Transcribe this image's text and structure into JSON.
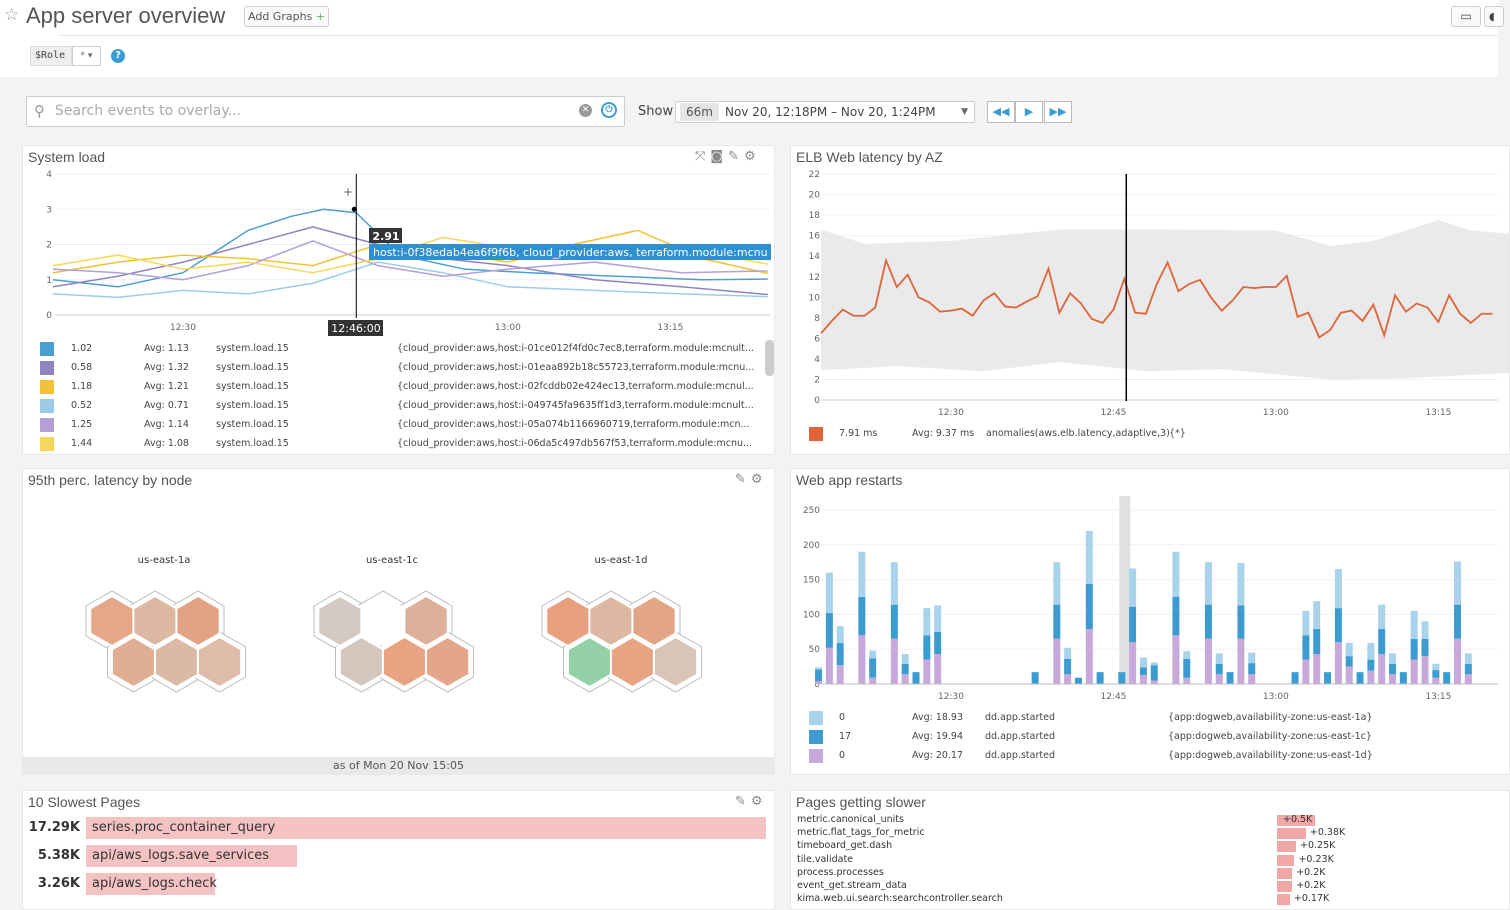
{
  "header": {
    "title": "App server overview",
    "add_graphs": "Add Graphs",
    "add_plus": "+",
    "template_var": "$Role",
    "template_value": "*",
    "help": "?"
  },
  "toolbar": {
    "search_placeholder": "Search events to overlay...",
    "show_label": "Show",
    "duration": "66m",
    "time_range": "Nov 20, 12:18PM – Nov 20, 1:24PM"
  },
  "icons": {
    "star": "star-icon",
    "monitor": "monitor-icon",
    "search": "search-icon",
    "clear": "clear-icon",
    "power": "power-icon",
    "rewind": "rewind-icon",
    "play": "play-icon",
    "fast_forward": "fast-forward-icon",
    "expand": "expand-icon",
    "camera": "camera-icon",
    "pencil": "pencil-icon",
    "gear": "gear-icon"
  },
  "system_load": {
    "title": "System load",
    "chart_data": {
      "type": "line",
      "ylim": [
        0,
        4
      ],
      "yticks": [
        "0",
        "1",
        "2",
        "3",
        "4"
      ],
      "xticks": [
        "12:30",
        "13:00",
        "13:15"
      ],
      "cursor": {
        "time": "12:46:00",
        "value": "2.91",
        "tooltip": "host:i-0f38edab4ea6f9f6b, cloud_provider:aws, terraform.module:mcnu"
      },
      "series": [
        {
          "color": "#4a9fd0",
          "points": [
            [
              "12:18",
              1.0
            ],
            [
              "12:24",
              0.8
            ],
            [
              "12:30",
              1.2
            ],
            [
              "12:36",
              2.4
            ],
            [
              "12:40",
              2.8
            ],
            [
              "12:43",
              3.0
            ],
            [
              "12:46",
              2.9
            ],
            [
              "12:50",
              1.7
            ],
            [
              "12:56",
              1.3
            ],
            [
              "13:02",
              1.2
            ],
            [
              "13:10",
              1.1
            ],
            [
              "13:18",
              1.0
            ],
            [
              "13:24",
              1.02
            ]
          ]
        },
        {
          "color": "#8e84c0",
          "points": [
            [
              "12:18",
              0.8
            ],
            [
              "12:24",
              1.1
            ],
            [
              "12:30",
              1.5
            ],
            [
              "12:36",
              2.0
            ],
            [
              "12:42",
              2.5
            ],
            [
              "12:48",
              2.0
            ],
            [
              "12:54",
              1.6
            ],
            [
              "13:00",
              1.4
            ],
            [
              "13:08",
              1.0
            ],
            [
              "13:16",
              0.8
            ],
            [
              "13:24",
              0.58
            ]
          ]
        },
        {
          "color": "#f0c23a",
          "points": [
            [
              "12:18",
              1.2
            ],
            [
              "12:24",
              1.5
            ],
            [
              "12:30",
              1.7
            ],
            [
              "12:36",
              1.6
            ],
            [
              "12:42",
              1.4
            ],
            [
              "12:48",
              2.0
            ],
            [
              "12:54",
              1.8
            ],
            [
              "13:00",
              1.5
            ],
            [
              "13:06",
              2.0
            ],
            [
              "13:12",
              2.4
            ],
            [
              "13:18",
              1.6
            ],
            [
              "13:24",
              1.18
            ]
          ]
        },
        {
          "color": "#9ccbe8",
          "points": [
            [
              "12:18",
              0.6
            ],
            [
              "12:24",
              0.5
            ],
            [
              "12:30",
              0.7
            ],
            [
              "12:36",
              0.6
            ],
            [
              "12:42",
              0.9
            ],
            [
              "12:48",
              1.5
            ],
            [
              "12:54",
              1.2
            ],
            [
              "13:00",
              0.8
            ],
            [
              "13:08",
              0.7
            ],
            [
              "13:16",
              0.6
            ],
            [
              "13:24",
              0.52
            ]
          ]
        },
        {
          "color": "#b49fd6",
          "points": [
            [
              "12:18",
              1.3
            ],
            [
              "12:24",
              1.2
            ],
            [
              "12:30",
              1.0
            ],
            [
              "12:36",
              1.4
            ],
            [
              "12:42",
              2.1
            ],
            [
              "12:48",
              1.4
            ],
            [
              "12:54",
              1.1
            ],
            [
              "13:00",
              1.3
            ],
            [
              "13:08",
              1.5
            ],
            [
              "13:16",
              1.2
            ],
            [
              "13:24",
              1.25
            ]
          ]
        },
        {
          "color": "#f5d75e",
          "points": [
            [
              "12:18",
              1.4
            ],
            [
              "12:24",
              1.7
            ],
            [
              "12:30",
              1.3
            ],
            [
              "12:36",
              1.5
            ],
            [
              "12:42",
              1.2
            ],
            [
              "12:48",
              1.6
            ],
            [
              "12:54",
              2.2
            ],
            [
              "13:00",
              1.9
            ],
            [
              "13:06",
              1.6
            ],
            [
              "13:12",
              2.0
            ],
            [
              "13:18",
              1.8
            ],
            [
              "13:24",
              1.44
            ]
          ]
        }
      ]
    },
    "legend": [
      {
        "color": "#4a9fd0",
        "value": "1.02",
        "avg": "Avg: 1.13",
        "metric": "system.load.15",
        "scope": "{cloud_provider:aws,host:i-01ce012f4fd0c7ec8,terraform.module:mcnult..."
      },
      {
        "color": "#8e84c0",
        "value": "0.58",
        "avg": "Avg: 1.32",
        "metric": "system.load.15",
        "scope": "{cloud_provider:aws,host:i-01eaa892b18c55723,terraform.module:mcnu..."
      },
      {
        "color": "#f0c23a",
        "value": "1.18",
        "avg": "Avg: 1.21",
        "metric": "system.load.15",
        "scope": "{cloud_provider:aws,host:i-02fcddb02e424ec13,terraform.module:mcnul..."
      },
      {
        "color": "#9ccbe8",
        "value": "0.52",
        "avg": "Avg: 0.71",
        "metric": "system.load.15",
        "scope": "{cloud_provider:aws,host:i-049745fa9635ff1d3,terraform.module:mcnult..."
      },
      {
        "color": "#b49fd6",
        "value": "1.25",
        "avg": "Avg: 1.14",
        "metric": "system.load.15",
        "scope": "{cloud_provider:aws,host:i-05a074b1166960719,terraform.module:mcn..."
      },
      {
        "color": "#f5d75e",
        "value": "1.44",
        "avg": "Avg: 1.08",
        "metric": "system.load.15",
        "scope": "{cloud_provider:aws,host:i-06da5c497db567f53,terraform.module:mcnu..."
      }
    ]
  },
  "elb": {
    "title": "ELB Web latency by AZ",
    "chart_data": {
      "type": "line",
      "ylim": [
        0,
        22
      ],
      "yticks": [
        "0",
        "2",
        "4",
        "6",
        "8",
        "10",
        "12",
        "14",
        "16",
        "18",
        "20",
        "22"
      ],
      "xticks": [
        "12:30",
        "12:45",
        "13:00",
        "13:15"
      ],
      "color": "#e0643a",
      "cursor_time": "12:46",
      "points": [
        [
          "12:18",
          6.5
        ],
        [
          "12:19",
          7.7
        ],
        [
          "12:20",
          8.8
        ],
        [
          "12:21",
          8.2
        ],
        [
          "12:22",
          8.2
        ],
        [
          "12:23",
          9.0
        ],
        [
          "12:24",
          13.6
        ],
        [
          "12:25",
          11.0
        ],
        [
          "12:26",
          12.2
        ],
        [
          "12:27",
          10.0
        ],
        [
          "12:28",
          9.5
        ],
        [
          "12:29",
          8.6
        ],
        [
          "12:30",
          8.7
        ],
        [
          "12:31",
          8.9
        ],
        [
          "12:32",
          8.2
        ],
        [
          "12:33",
          9.7
        ],
        [
          "12:34",
          10.4
        ],
        [
          "12:35",
          9.1
        ],
        [
          "12:36",
          9.0
        ],
        [
          "12:37",
          9.6
        ],
        [
          "12:38",
          10.1
        ],
        [
          "12:39",
          12.8
        ],
        [
          "12:40",
          8.5
        ],
        [
          "12:41",
          10.4
        ],
        [
          "12:42",
          9.4
        ],
        [
          "12:43",
          7.9
        ],
        [
          "12:44",
          7.5
        ],
        [
          "12:45",
          8.8
        ],
        [
          "12:46",
          11.8
        ],
        [
          "12:47",
          8.5
        ],
        [
          "12:48",
          8.4
        ],
        [
          "12:49",
          11.3
        ],
        [
          "12:50",
          13.4
        ],
        [
          "12:51",
          10.6
        ],
        [
          "12:52",
          11.3
        ],
        [
          "12:53",
          11.7
        ],
        [
          "12:54",
          10.0
        ],
        [
          "12:55",
          8.7
        ],
        [
          "12:56",
          9.7
        ],
        [
          "12:57",
          11.0
        ],
        [
          "12:58",
          10.9
        ],
        [
          "12:59",
          11.0
        ],
        [
          "13:00",
          11.0
        ],
        [
          "13:01",
          12.1
        ],
        [
          "13:02",
          8.1
        ],
        [
          "13:03",
          8.5
        ],
        [
          "13:04",
          6.1
        ],
        [
          "13:05",
          6.8
        ],
        [
          "13:06",
          8.5
        ],
        [
          "13:07",
          8.7
        ],
        [
          "13:08",
          7.7
        ],
        [
          "13:09",
          9.3
        ],
        [
          "13:10",
          6.3
        ],
        [
          "13:11",
          10.2
        ],
        [
          "13:12",
          8.6
        ],
        [
          "13:13",
          9.4
        ],
        [
          "13:14",
          9.0
        ],
        [
          "13:15",
          7.6
        ],
        [
          "13:16",
          10.2
        ],
        [
          "13:17",
          8.4
        ],
        [
          "13:18",
          7.5
        ],
        [
          "13:19",
          8.4
        ],
        [
          "13:20",
          8.4
        ]
      ],
      "band_upper": [
        [
          "12:18",
          16.6
        ],
        [
          "12:22",
          15.2
        ],
        [
          "12:30",
          15.5
        ],
        [
          "12:40",
          16.6
        ],
        [
          "12:50",
          16.6
        ],
        [
          "13:00",
          16.5
        ],
        [
          "13:05",
          15.0
        ],
        [
          "13:09",
          15.5
        ],
        [
          "13:15",
          17.5
        ],
        [
          "13:18",
          16.5
        ],
        [
          "13:24",
          16.0
        ]
      ],
      "band_lower": [
        [
          "12:18",
          2.9
        ],
        [
          "12:25",
          3.3
        ],
        [
          "12:33",
          2.8
        ],
        [
          "12:40",
          3.7
        ],
        [
          "12:48",
          2.8
        ],
        [
          "12:55",
          3.0
        ],
        [
          "13:05",
          2.0
        ],
        [
          "13:12",
          2.1
        ],
        [
          "13:24",
          2.8
        ]
      ]
    },
    "legend": {
      "color": "#e0643a",
      "value": "7.91 ms",
      "avg": "Avg: 9.37 ms",
      "metric": "anomalies(aws.elb.latency,adaptive,3)",
      "scope": "{*}"
    }
  },
  "latency_node": {
    "title": "95th perc. latency by node",
    "as_of": "as of Mon 20 Nov 15:05",
    "groups": [
      {
        "label": "us-east-1a",
        "colors": [
          "#e6a688",
          "#dcb7a2",
          "#e2a283",
          "#dfae94",
          "#dcb9a6",
          "#dfbba9"
        ]
      },
      {
        "label": "us-east-1c",
        "colors": [
          "#d3c9c2",
          "#ffffff",
          "#ddb09a",
          "#d3c6bd",
          "#e9a282",
          "#e4a68a"
        ]
      },
      {
        "label": "us-east-1d",
        "colors": [
          "#e9a07e",
          "#dcb7a2",
          "#e2a686",
          "#95d1a6",
          "#e8a482",
          "#d9c4b8"
        ]
      }
    ]
  },
  "restarts": {
    "title": "Web app restarts",
    "chart_data": {
      "type": "bar",
      "stacked": true,
      "ylim": [
        0,
        250
      ],
      "yticks": [
        "0",
        "50",
        "100",
        "150",
        "200",
        "250"
      ],
      "xticks": [
        "12:30",
        "12:45",
        "13:00",
        "13:15"
      ],
      "highlight_time": "12:46",
      "colors": {
        "us-east-1a": "#a8d3ea",
        "us-east-1c": "#3d9ccf",
        "us-east-1d": "#c7a8da"
      },
      "bars": [
        [
          "12:18",
          3,
          17,
          4
        ],
        [
          "12:19",
          58,
          50,
          52
        ],
        [
          "12:20",
          24,
          32,
          27
        ],
        [
          "12:22",
          65,
          55,
          70
        ],
        [
          "12:23",
          11,
          28,
          9
        ],
        [
          "12:25",
          61,
          49,
          65
        ],
        [
          "12:26",
          14,
          15,
          14
        ],
        [
          "12:27",
          0,
          17,
          0
        ],
        [
          "12:28",
          39,
          35,
          35
        ],
        [
          "12:29",
          38,
          32,
          43
        ],
        [
          "12:38",
          0,
          17,
          0
        ],
        [
          "12:40",
          61,
          49,
          65
        ],
        [
          "12:41",
          16,
          22,
          14
        ],
        [
          "12:42",
          0,
          9,
          0
        ],
        [
          "12:43",
          76,
          65,
          79
        ],
        [
          "12:44",
          0,
          17,
          0
        ],
        [
          "12:46",
          0,
          17,
          0
        ],
        [
          "12:47",
          55,
          51,
          60
        ],
        [
          "12:48",
          14,
          11,
          13
        ],
        [
          "12:49",
          4,
          22,
          5
        ],
        [
          "12:51",
          65,
          55,
          70
        ],
        [
          "12:52",
          11,
          27,
          9
        ],
        [
          "12:54",
          61,
          49,
          65
        ],
        [
          "12:55",
          15,
          15,
          14
        ],
        [
          "12:56",
          0,
          17,
          0
        ],
        [
          "12:57",
          61,
          48,
          65
        ],
        [
          "12:58",
          15,
          16,
          14
        ],
        [
          "13:02",
          0,
          17,
          0
        ],
        [
          "13:03",
          35,
          35,
          35
        ],
        [
          "13:04",
          40,
          36,
          43
        ],
        [
          "13:05",
          0,
          17,
          0
        ],
        [
          "13:06",
          56,
          49,
          60
        ],
        [
          "13:07",
          19,
          15,
          25
        ],
        [
          "13:08",
          0,
          17,
          0
        ],
        [
          "13:09",
          24,
          16,
          19
        ],
        [
          "13:10",
          35,
          36,
          43
        ],
        [
          "13:11",
          15,
          15,
          14
        ],
        [
          "13:12",
          0,
          17,
          0
        ],
        [
          "13:13",
          40,
          30,
          35
        ],
        [
          "13:14",
          25,
          25,
          40
        ],
        [
          "13:15",
          9,
          11,
          9
        ],
        [
          "13:16",
          0,
          17,
          0
        ],
        [
          "13:17",
          62,
          49,
          65
        ],
        [
          "13:18",
          15,
          15,
          14
        ]
      ]
    },
    "legend": [
      {
        "color": "#a8d3ea",
        "value": "0",
        "avg": "Avg: 18.93",
        "metric": "dd.app.started",
        "scope": "{app:dogweb,availability-zone:us-east-1a}"
      },
      {
        "color": "#3d9ccf",
        "value": "17",
        "avg": "Avg: 19.94",
        "metric": "dd.app.started",
        "scope": "{app:dogweb,availability-zone:us-east-1c}"
      },
      {
        "color": "#c7a8da",
        "value": "0",
        "avg": "Avg: 20.17",
        "metric": "dd.app.started",
        "scope": "{app:dogweb,availability-zone:us-east-1d}"
      }
    ]
  },
  "slowest": {
    "title": "10 Slowest Pages",
    "rows": [
      {
        "value": "17.29K",
        "name": "series.proc_container_query",
        "fraction": 1.0
      },
      {
        "value": "5.38K",
        "name": "api/aws_logs.save_services",
        "fraction": 0.311
      },
      {
        "value": "3.26K",
        "name": "api/aws_logs.check",
        "fraction": 0.189
      }
    ]
  },
  "slower": {
    "title": "Pages getting slower",
    "rows": [
      {
        "name": "metric.canonical_units",
        "delta": "+0.5K",
        "value": 0.5
      },
      {
        "name": "metric.flat_tags_for_metric",
        "delta": "+0.38K",
        "value": 0.38
      },
      {
        "name": "timeboard_get.dash",
        "delta": "+0.25K",
        "value": 0.25
      },
      {
        "name": "tile.validate",
        "delta": "+0.23K",
        "value": 0.23
      },
      {
        "name": "process.processes",
        "delta": "+0.2K",
        "value": 0.2
      },
      {
        "name": "event_get.stream_data",
        "delta": "+0.2K",
        "value": 0.2
      },
      {
        "name": "kima.web.ui.search:searchcontroller.search",
        "delta": "+0.17K",
        "value": 0.17
      }
    ]
  }
}
